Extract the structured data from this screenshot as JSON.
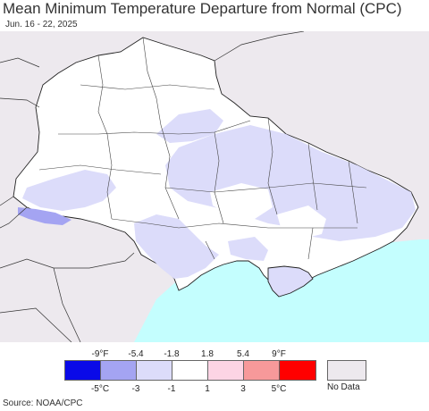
{
  "header": {
    "title": "Mean Minimum Temperature Departure from Normal (CPC)",
    "subtitle": "Jun. 16 - 22, 2025"
  },
  "legend": {
    "f_ticks": [
      "-9°F",
      "-5.4",
      "-1.8",
      "1.8",
      "5.4",
      "9°F"
    ],
    "c_ticks": [
      "-5°C",
      "-3",
      "-1",
      "1",
      "3",
      "5°C"
    ],
    "colors": [
      "#0a0ae8",
      "#a4a4f2",
      "#dcdcfa",
      "#ffffff",
      "#fcd4e4",
      "#f7999a",
      "#ff0000"
    ],
    "no_data_label": "No Data",
    "no_data_color": "#ede9ee"
  },
  "map": {
    "sea_color": "#c4fefe",
    "land_outside_color": "#ede9ee",
    "country_fill": "#ffffff",
    "cool_fill": "#dcdcfa",
    "cold_fill": "#a4a4f2"
  },
  "footer": {
    "source": "Source: NOAA/CPC"
  }
}
